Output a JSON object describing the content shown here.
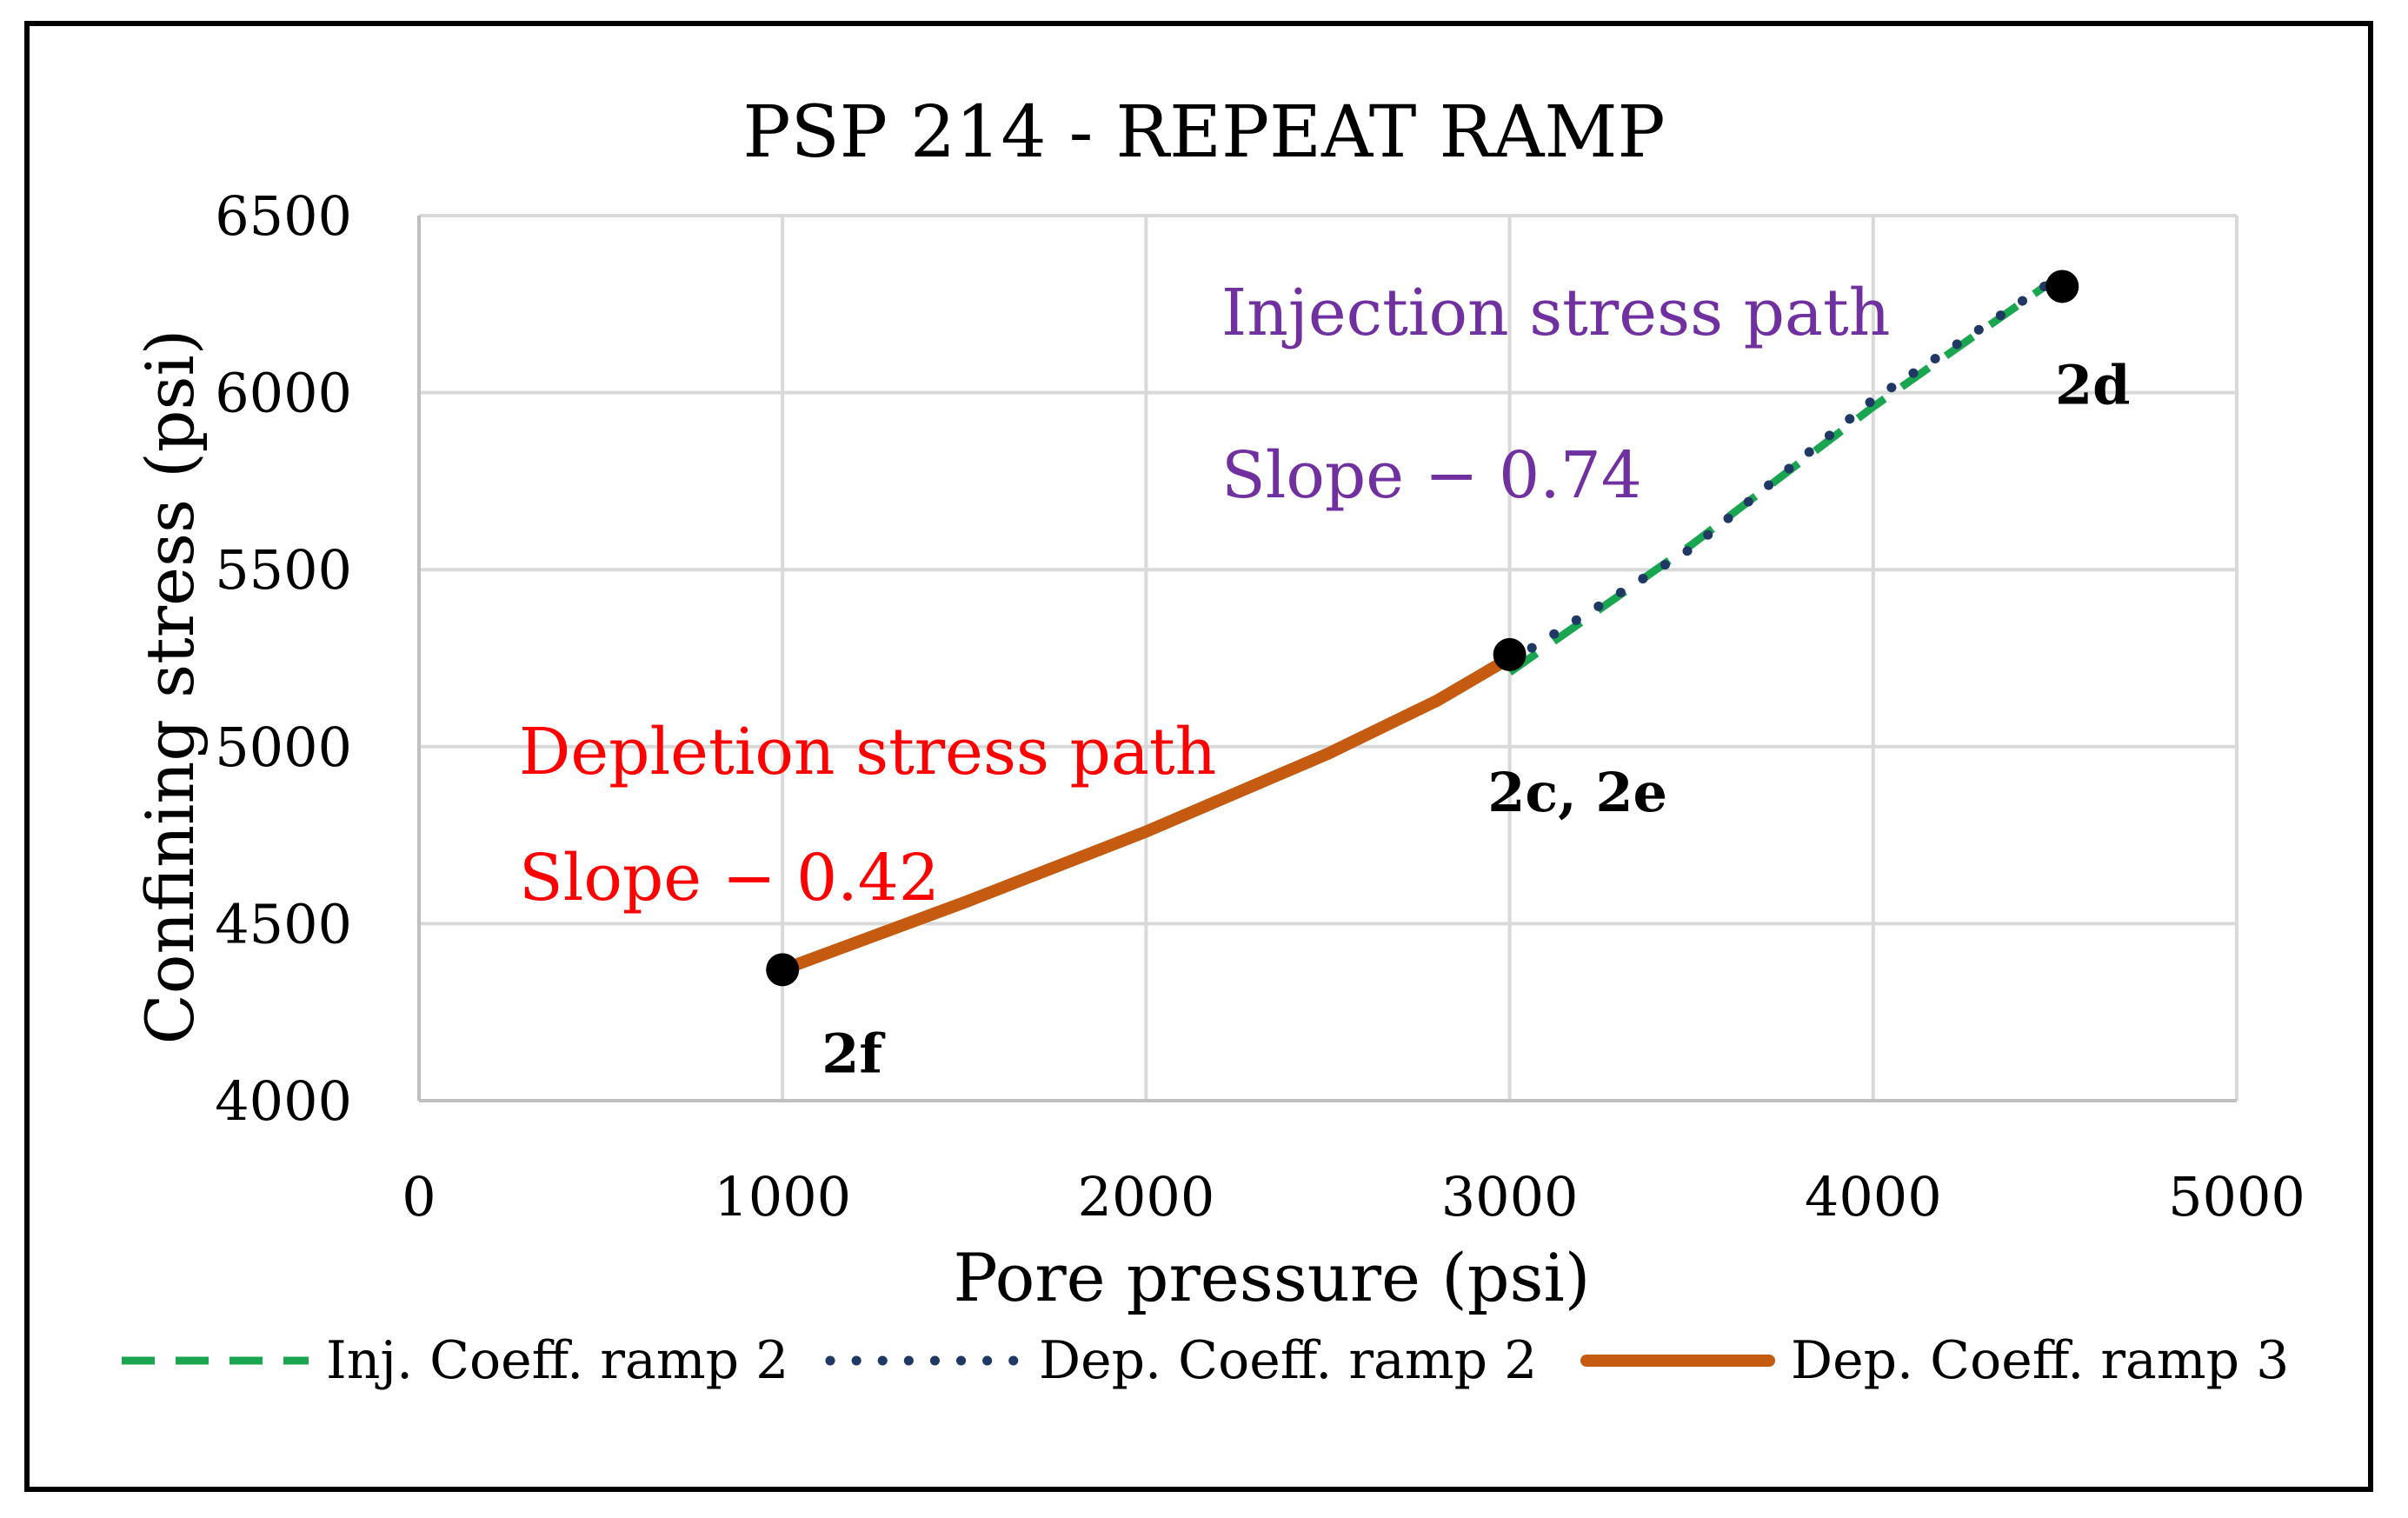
{
  "chart_data": {
    "type": "line",
    "title": "PSP 214 - REPEAT RAMP",
    "xlabel": "Pore pressure (psi)",
    "ylabel": "Confining stress (psi)",
    "xlim": [
      0,
      5000
    ],
    "ylim": [
      4000,
      6500
    ],
    "xticks": [
      "0",
      "1000",
      "2000",
      "3000",
      "4000",
      "5000"
    ],
    "yticks": [
      "4000",
      "4500",
      "5000",
      "5500",
      "6000",
      "6500"
    ],
    "grid": true,
    "legend_position": "bottom",
    "series": [
      {
        "name": "Inj. Coeff. ramp 2",
        "color": "#1aa650",
        "style": "dashed",
        "points": [
          [
            3000,
            5210
          ],
          [
            3500,
            5570
          ],
          [
            4000,
            5960
          ],
          [
            4500,
            6320
          ]
        ]
      },
      {
        "name": "Dep. Coeff. ramp 2",
        "color": "#1f3864",
        "style": "dotted",
        "points": [
          [
            3000,
            5240
          ],
          [
            3500,
            5560
          ],
          [
            4000,
            5980
          ],
          [
            4500,
            6320
          ]
        ]
      },
      {
        "name": "Dep. Coeff. ramp 3",
        "color": "#c55a11",
        "style": "solid",
        "points": [
          [
            1000,
            4370
          ],
          [
            1500,
            4560
          ],
          [
            2000,
            4760
          ],
          [
            2500,
            4980
          ],
          [
            2800,
            5130
          ],
          [
            3000,
            5250
          ]
        ]
      }
    ],
    "markers": [
      {
        "label": "2f",
        "x": 1000,
        "y": 4370
      },
      {
        "label": "2c, 2e",
        "x": 3000,
        "y": 5260
      },
      {
        "label": "2d",
        "x": 4520,
        "y": 6300
      }
    ],
    "annotations": [
      {
        "text": "Injection stress path",
        "color": "#7030a0"
      },
      {
        "text": "Slope − 0.74",
        "color": "#7030a0"
      },
      {
        "text": "Depletion stress path",
        "color": "#ff0000"
      },
      {
        "text": "Slope − 0.42",
        "color": "#ff0000"
      }
    ]
  }
}
